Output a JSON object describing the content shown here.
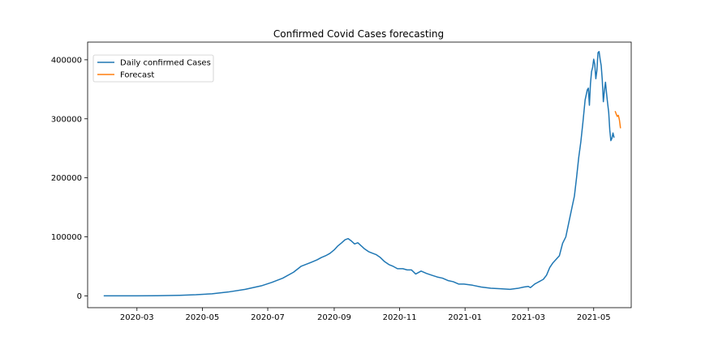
{
  "colors": {
    "cases": "#1f77b4",
    "forecast": "#ff7f0e"
  },
  "chart_data": {
    "type": "line",
    "title": "Confirmed Covid Cases forecasting",
    "xlabel": "",
    "ylabel": "",
    "x_type": "date",
    "xlim": [
      "2020-01-15",
      "2021-06-05"
    ],
    "ylim": [
      -20000,
      430000
    ],
    "x_ticks": [
      "2020-03-01",
      "2020-05-01",
      "2020-07-01",
      "2020-09-01",
      "2020-11-01",
      "2021-01-01",
      "2021-03-01",
      "2021-05-01"
    ],
    "x_tick_labels": [
      "2020-03",
      "2020-05",
      "2020-07",
      "2020-09",
      "2020-11",
      "2021-01",
      "2021-03",
      "2021-05"
    ],
    "y_ticks": [
      0,
      100000,
      200000,
      300000,
      400000
    ],
    "y_tick_labels": [
      "0",
      "100000",
      "200000",
      "300000",
      "400000"
    ],
    "grid": false,
    "legend": "upper-left",
    "series": [
      {
        "name": "Daily confirmed Cases",
        "color": "#1f77b4",
        "x": [
          "2020-01-30",
          "2020-02-15",
          "2020-03-01",
          "2020-03-20",
          "2020-04-10",
          "2020-04-25",
          "2020-05-10",
          "2020-05-25",
          "2020-06-10",
          "2020-06-25",
          "2020-07-05",
          "2020-07-15",
          "2020-07-25",
          "2020-08-01",
          "2020-08-08",
          "2020-08-12",
          "2020-08-16",
          "2020-08-20",
          "2020-08-24",
          "2020-08-28",
          "2020-09-01",
          "2020-09-04",
          "2020-09-08",
          "2020-09-11",
          "2020-09-14",
          "2020-09-17",
          "2020-09-20",
          "2020-09-23",
          "2020-09-26",
          "2020-09-29",
          "2020-10-03",
          "2020-10-07",
          "2020-10-10",
          "2020-10-14",
          "2020-10-18",
          "2020-10-22",
          "2020-10-26",
          "2020-10-30",
          "2020-11-04",
          "2020-11-08",
          "2020-11-12",
          "2020-11-16",
          "2020-11-21",
          "2020-11-26",
          "2020-12-01",
          "2020-12-06",
          "2020-12-11",
          "2020-12-16",
          "2020-12-21",
          "2020-12-26",
          "2020-12-31",
          "2021-01-08",
          "2021-01-16",
          "2021-01-25",
          "2021-02-03",
          "2021-02-12",
          "2021-02-20",
          "2021-02-25",
          "2021-03-01",
          "2021-03-03",
          "2021-03-05",
          "2021-03-07",
          "2021-03-09",
          "2021-03-11",
          "2021-03-13",
          "2021-03-15",
          "2021-03-18",
          "2021-03-21",
          "2021-03-24",
          "2021-03-27",
          "2021-03-30",
          "2021-04-02",
          "2021-04-05",
          "2021-04-08",
          "2021-04-11",
          "2021-04-13",
          "2021-04-15",
          "2021-04-17",
          "2021-04-19",
          "2021-04-21",
          "2021-04-23",
          "2021-04-25",
          "2021-04-26",
          "2021-04-27",
          "2021-04-28",
          "2021-04-29",
          "2021-04-30",
          "2021-05-01",
          "2021-05-02",
          "2021-05-03",
          "2021-05-04",
          "2021-05-05",
          "2021-05-06",
          "2021-05-07",
          "2021-05-08",
          "2021-05-09",
          "2021-05-10",
          "2021-05-11",
          "2021-05-12",
          "2021-05-13",
          "2021-05-14",
          "2021-05-15",
          "2021-05-16",
          "2021-05-17",
          "2021-05-18",
          "2021-05-19",
          "2021-05-20"
        ],
        "values": [
          0,
          0,
          0,
          300,
          1000,
          1900,
          3500,
          6500,
          11000,
          17000,
          23000,
          30000,
          40000,
          50000,
          55000,
          58000,
          61000,
          65000,
          68000,
          72000,
          78000,
          84000,
          90000,
          95000,
          97000,
          93000,
          88000,
          90000,
          85000,
          80000,
          75000,
          72000,
          70000,
          65000,
          58000,
          53000,
          50000,
          46000,
          46000,
          44000,
          44000,
          37000,
          42000,
          38000,
          35000,
          32000,
          30000,
          26000,
          24000,
          20000,
          20000,
          18000,
          15000,
          13000,
          12000,
          11000,
          13000,
          15000,
          16000,
          14000,
          17000,
          20000,
          22000,
          24000,
          26000,
          28000,
          35000,
          48000,
          56000,
          62000,
          68000,
          89000,
          100000,
          126000,
          152000,
          169000,
          200000,
          234000,
          261000,
          295000,
          332000,
          349000,
          352000,
          323000,
          360000,
          380000,
          387000,
          401000,
          392000,
          368000,
          382000,
          412000,
          414000,
          401000,
          390000,
          366000,
          329000,
          348000,
          362000,
          343000,
          326000,
          311000,
          281000,
          263000,
          267000,
          276000,
          268000
        ]
      },
      {
        "name": "Forecast",
        "color": "#ff7f0e",
        "x": [
          "2021-05-21",
          "2021-05-22",
          "2021-05-23",
          "2021-05-24",
          "2021-05-25",
          "2021-05-26"
        ],
        "values": [
          313000,
          308000,
          304000,
          306000,
          298000,
          284000
        ]
      }
    ]
  }
}
